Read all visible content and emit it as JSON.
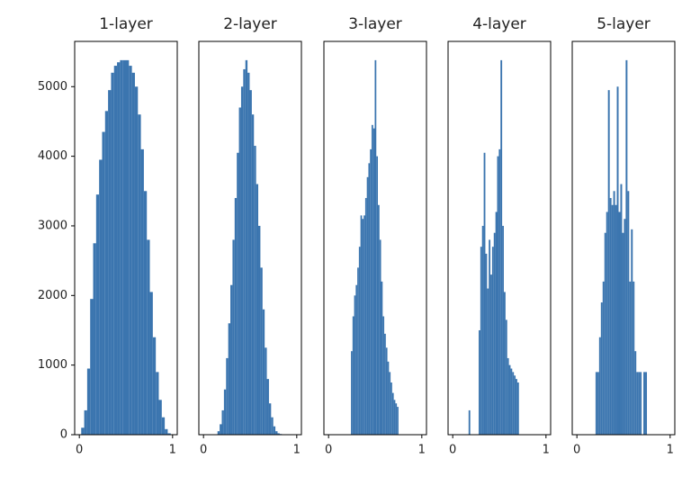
{
  "chart_data": [
    {
      "type": "histogram",
      "title": "1-layer",
      "color": "#3b75af",
      "bins": [
        0.02,
        0.052,
        0.084,
        0.116,
        0.148,
        0.18,
        0.212,
        0.244,
        0.276,
        0.308,
        0.34,
        0.372,
        0.404,
        0.436,
        0.468,
        0.5,
        0.532,
        0.564,
        0.596,
        0.628,
        0.66,
        0.692,
        0.724,
        0.756,
        0.788,
        0.82,
        0.852,
        0.884,
        0.916,
        0.948,
        0.98
      ],
      "counts": [
        100,
        350,
        950,
        1950,
        2750,
        3450,
        3950,
        4350,
        4650,
        4950,
        5200,
        5300,
        5350,
        5380,
        5380,
        5380,
        5300,
        5200,
        5000,
        4600,
        4100,
        3500,
        2800,
        2050,
        1400,
        900,
        500,
        250,
        80,
        20
      ],
      "xlim": [
        -0.05,
        1.05
      ],
      "ylim": [
        0,
        5650
      ],
      "xticks": [
        0,
        1
      ],
      "yticks": [
        0,
        1000,
        2000,
        3000,
        4000,
        5000
      ]
    },
    {
      "type": "histogram",
      "title": "2-layer",
      "color": "#3b75af",
      "bins": [
        0.15,
        0.173,
        0.196,
        0.219,
        0.242,
        0.265,
        0.288,
        0.311,
        0.334,
        0.357,
        0.38,
        0.403,
        0.426,
        0.449,
        0.472,
        0.495,
        0.518,
        0.541,
        0.564,
        0.587,
        0.61,
        0.633,
        0.656,
        0.679,
        0.702,
        0.725,
        0.748,
        0.771,
        0.794,
        0.817,
        0.84
      ],
      "counts": [
        50,
        150,
        350,
        650,
        1100,
        1600,
        2150,
        2800,
        3400,
        4050,
        4700,
        5000,
        5250,
        5380,
        5200,
        4950,
        4600,
        4150,
        3600,
        3000,
        2400,
        1800,
        1250,
        800,
        450,
        250,
        120,
        50,
        20,
        10
      ],
      "xlim": [
        -0.05,
        1.05
      ],
      "ylim": [
        0,
        5650
      ],
      "xticks": [
        0,
        1
      ]
    },
    {
      "type": "histogram",
      "title": "3-layer",
      "color": "#3b75af",
      "bins": [
        0.24,
        0.257,
        0.274,
        0.291,
        0.308,
        0.325,
        0.342,
        0.359,
        0.376,
        0.393,
        0.41,
        0.427,
        0.444,
        0.461,
        0.478,
        0.495,
        0.512,
        0.529,
        0.546,
        0.563,
        0.58,
        0.597,
        0.614,
        0.631,
        0.648,
        0.665,
        0.682,
        0.699,
        0.716,
        0.733,
        0.75
      ],
      "counts": [
        1200,
        1700,
        2000,
        2150,
        2400,
        2700,
        3150,
        3100,
        3150,
        3400,
        3700,
        3900,
        4100,
        4450,
        4400,
        5380,
        4000,
        3300,
        2800,
        2200,
        1700,
        1450,
        1250,
        1050,
        900,
        750,
        600,
        500,
        450,
        400
      ],
      "xlim": [
        -0.05,
        1.05
      ],
      "ylim": [
        0,
        5650
      ],
      "xticks": [
        0,
        1
      ]
    },
    {
      "type": "histogram",
      "title": "4-layer",
      "color": "#3b75af",
      "bins": [
        0.17,
        0.188,
        0.206,
        0.224,
        0.242,
        0.26,
        0.278,
        0.296,
        0.314,
        0.332,
        0.35,
        0.368,
        0.386,
        0.404,
        0.422,
        0.44,
        0.458,
        0.476,
        0.494,
        0.512,
        0.53,
        0.548,
        0.566,
        0.584,
        0.602,
        0.62,
        0.638,
        0.656,
        0.674,
        0.692,
        0.71
      ],
      "counts": [
        350,
        0,
        0,
        0,
        0,
        0,
        1500,
        2700,
        3000,
        4050,
        2600,
        2100,
        2800,
        2300,
        2700,
        2900,
        3200,
        4000,
        4100,
        5380,
        3000,
        2050,
        1650,
        1100,
        1000,
        950,
        900,
        850,
        800,
        750
      ],
      "xlim": [
        -0.05,
        1.05
      ],
      "ylim": [
        0,
        5650
      ],
      "xticks": [
        0,
        1
      ]
    },
    {
      "type": "histogram",
      "title": "5-layer",
      "color": "#3b75af",
      "bins": [
        0.2,
        0.219,
        0.238,
        0.257,
        0.276,
        0.295,
        0.314,
        0.333,
        0.352,
        0.371,
        0.39,
        0.409,
        0.428,
        0.447,
        0.466,
        0.485,
        0.504,
        0.523,
        0.542,
        0.561,
        0.58,
        0.599,
        0.618,
        0.637,
        0.656,
        0.675,
        0.694,
        0.713,
        0.732,
        0.751,
        0.77
      ],
      "counts": [
        900,
        900,
        1400,
        1900,
        2200,
        2900,
        3200,
        4950,
        3400,
        3300,
        3500,
        3300,
        5000,
        3200,
        3600,
        2900,
        3100,
        5380,
        3500,
        2200,
        2950,
        2200,
        1200,
        900,
        900,
        900,
        0,
        900,
        900,
        0
      ],
      "xlim": [
        -0.05,
        1.05
      ],
      "ylim": [
        0,
        5650
      ],
      "xticks": [
        0,
        1
      ]
    }
  ]
}
